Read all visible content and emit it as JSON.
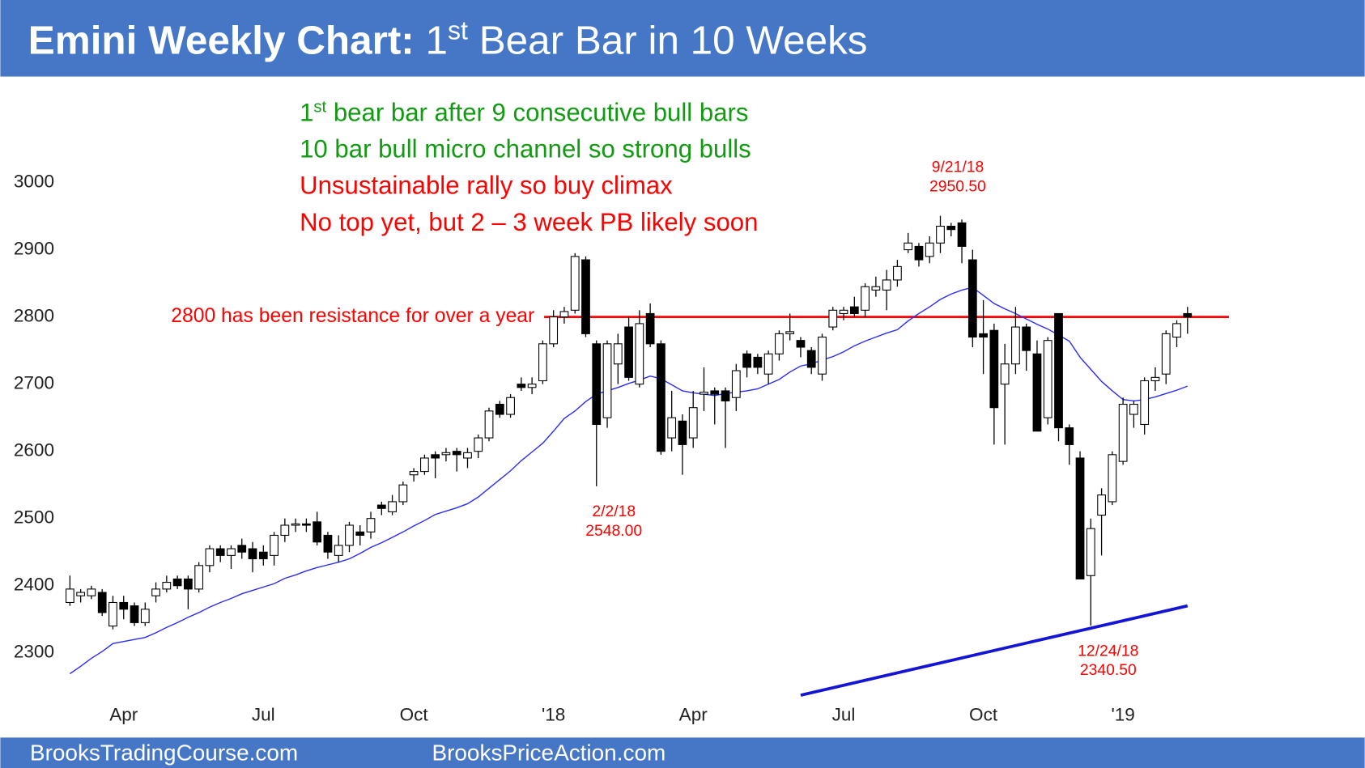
{
  "header": {
    "title_parts": [
      {
        "text": "Emini Weekly Chart:",
        "bold": true
      },
      {
        "text": " 1"
      },
      {
        "text": "st",
        "sup": true
      },
      {
        "text": " Bear Bar in 10 Weeks"
      }
    ]
  },
  "footer": [
    "BrooksTradingCourse.com",
    "BrooksPriceAction.com"
  ],
  "chart_data": {
    "type": "candlestick",
    "categories": [
      null,
      null,
      null,
      null,
      null,
      "Apr",
      null,
      null,
      null,
      null,
      null,
      null,
      null,
      null,
      null,
      null,
      null,
      null,
      "Jul",
      null,
      null,
      null,
      null,
      null,
      null,
      null,
      null,
      null,
      null,
      null,
      null,
      null,
      "Oct",
      null,
      null,
      null,
      null,
      null,
      null,
      null,
      null,
      null,
      null,
      null,
      null,
      "'18",
      null,
      null,
      null,
      null,
      null,
      null,
      null,
      null,
      null,
      null,
      null,
      null,
      "Apr",
      null,
      null,
      null,
      null,
      null,
      null,
      null,
      null,
      null,
      null,
      null,
      null,
      null,
      "Jul",
      null,
      null,
      null,
      null,
      null,
      null,
      null,
      null,
      null,
      null,
      null,
      null,
      "Oct",
      null,
      null,
      null,
      null,
      null,
      null,
      null,
      null,
      null,
      null,
      null,
      null,
      "'19",
      null,
      null,
      null,
      null,
      null,
      null
    ],
    "open": [
      2375,
      2385,
      2385,
      2390,
      2340,
      2375,
      2370,
      2345,
      2385,
      2395,
      2410,
      2410,
      2395,
      2430,
      2455,
      2445,
      2460,
      2455,
      2450,
      2445,
      2475,
      2490,
      2492,
      2495,
      2475,
      2445,
      2460,
      2480,
      2480,
      2520,
      2510,
      2525,
      2565,
      2570,
      2595,
      2595,
      2600,
      2590,
      2600,
      2620,
      2670,
      2655,
      2700,
      2695,
      2705,
      2760,
      2800,
      2810,
      2885,
      2760,
      2650,
      2730,
      2785,
      2700,
      2805,
      2760,
      2620,
      2645,
      2620,
      2685,
      2690,
      2690,
      2680,
      2745,
      2740,
      2715,
      2745,
      2775,
      2765,
      2750,
      2715,
      2785,
      2805,
      2815,
      2810,
      2840,
      2840,
      2855,
      2900,
      2905,
      2890,
      2910,
      2935,
      2940,
      2885,
      2775,
      2780,
      2700,
      2730,
      2785,
      2745,
      2650,
      2805,
      2635,
      2590,
      2415,
      2505,
      2525,
      2585,
      2655,
      2640,
      2705,
      2715,
      2770,
      2805
    ],
    "high": [
      2415,
      2395,
      2400,
      2395,
      2385,
      2385,
      2375,
      2375,
      2405,
      2415,
      2415,
      2415,
      2435,
      2460,
      2460,
      2460,
      2470,
      2465,
      2460,
      2480,
      2500,
      2500,
      2500,
      2510,
      2480,
      2475,
      2495,
      2490,
      2510,
      2525,
      2535,
      2555,
      2575,
      2595,
      2600,
      2605,
      2605,
      2605,
      2625,
      2665,
      2675,
      2685,
      2710,
      2710,
      2765,
      2810,
      2815,
      2895,
      2890,
      2765,
      2765,
      2775,
      2800,
      2810,
      2820,
      2765,
      2690,
      2655,
      2690,
      2725,
      2695,
      2695,
      2730,
      2750,
      2745,
      2750,
      2780,
      2805,
      2770,
      2755,
      2775,
      2815,
      2815,
      2830,
      2850,
      2860,
      2870,
      2885,
      2925,
      2910,
      2920,
      2950.5,
      2940,
      2945,
      2900,
      2825,
      2790,
      2760,
      2815,
      2790,
      2765,
      2770,
      2805,
      2640,
      2600,
      2500,
      2545,
      2600,
      2680,
      2675,
      2710,
      2725,
      2780,
      2795,
      2815
    ],
    "low": [
      2370,
      2375,
      2380,
      2355,
      2335,
      2350,
      2340,
      2340,
      2375,
      2390,
      2395,
      2365,
      2390,
      2420,
      2435,
      2425,
      2440,
      2420,
      2430,
      2430,
      2465,
      2480,
      2480,
      2460,
      2440,
      2435,
      2450,
      2460,
      2470,
      2505,
      2505,
      2520,
      2555,
      2565,
      2560,
      2585,
      2570,
      2575,
      2590,
      2615,
      2650,
      2650,
      2690,
      2685,
      2700,
      2755,
      2790,
      2805,
      2770,
      2548,
      2635,
      2700,
      2705,
      2695,
      2755,
      2595,
      2600,
      2565,
      2605,
      2660,
      2640,
      2605,
      2660,
      2710,
      2715,
      2700,
      2735,
      2765,
      2740,
      2715,
      2705,
      2780,
      2795,
      2800,
      2800,
      2830,
      2810,
      2845,
      2895,
      2875,
      2880,
      2895,
      2920,
      2880,
      2755,
      2715,
      2610,
      2610,
      2715,
      2720,
      2630,
      2640,
      2615,
      2580,
      2410,
      2340.5,
      2445,
      2520,
      2580,
      2635,
      2625,
      2690,
      2700,
      2755,
      2775
    ],
    "close": [
      2395,
      2390,
      2395,
      2360,
      2375,
      2365,
      2345,
      2365,
      2395,
      2405,
      2400,
      2395,
      2430,
      2455,
      2445,
      2455,
      2450,
      2440,
      2440,
      2475,
      2490,
      2492,
      2490,
      2465,
      2450,
      2460,
      2490,
      2475,
      2500,
      2515,
      2525,
      2550,
      2570,
      2590,
      2590,
      2598,
      2595,
      2598,
      2620,
      2660,
      2655,
      2680,
      2695,
      2700,
      2760,
      2800,
      2808,
      2890,
      2775,
      2640,
      2760,
      2760,
      2710,
      2790,
      2760,
      2600,
      2650,
      2610,
      2665,
      2688,
      2685,
      2675,
      2720,
      2725,
      2725,
      2745,
      2775,
      2778,
      2755,
      2725,
      2770,
      2810,
      2810,
      2805,
      2845,
      2845,
      2855,
      2875,
      2910,
      2885,
      2910,
      2935,
      2930,
      2905,
      2770,
      2770,
      2665,
      2730,
      2785,
      2750,
      2630,
      2765,
      2635,
      2610,
      2410,
      2485,
      2535,
      2595,
      2670,
      2670,
      2705,
      2710,
      2775,
      2790,
      2800
    ],
    "up_color": "#ffffff",
    "down_color": "#000000",
    "moving_average": {
      "color": "#2b2bff",
      "values": [
        2269,
        2280,
        2292,
        2302,
        2314,
        2317,
        2320,
        2323,
        2330,
        2338,
        2345,
        2353,
        2360,
        2368,
        2375,
        2381,
        2388,
        2393,
        2398,
        2403,
        2411,
        2416,
        2422,
        2427,
        2431,
        2435,
        2440,
        2448,
        2457,
        2464,
        2472,
        2480,
        2489,
        2497,
        2506,
        2511,
        2516,
        2522,
        2532,
        2545,
        2558,
        2571,
        2586,
        2599,
        2612,
        2630,
        2649,
        2660,
        2674,
        2685,
        2690,
        2695,
        2701,
        2706,
        2712,
        2708,
        2699,
        2690,
        2687,
        2685,
        2683,
        2686,
        2688,
        2690,
        2693,
        2700,
        2707,
        2718,
        2727,
        2730,
        2736,
        2741,
        2748,
        2757,
        2764,
        2770,
        2776,
        2781,
        2794,
        2805,
        2815,
        2826,
        2834,
        2840,
        2844,
        2832,
        2820,
        2812,
        2805,
        2797,
        2789,
        2782,
        2773,
        2764,
        2740,
        2722,
        2704,
        2690,
        2677,
        2675,
        2677,
        2681,
        2686,
        2691,
        2697
      ]
    },
    "ylim": [
      2240,
      3150
    ],
    "yticks": [
      2300,
      2400,
      2500,
      2600,
      2700,
      2800,
      2900,
      3000
    ],
    "hline": {
      "value": 2800,
      "label": "2800 has been resistance for over a year",
      "color": "#ff0000"
    },
    "trend_line": {
      "color": "#1414d6",
      "start": {
        "category": 68,
        "value": 2237
      },
      "end": {
        "category": 104,
        "value": 2370
      }
    },
    "annotations": [
      {
        "color": "#129a12",
        "parts": [
          {
            "text": "1"
          },
          {
            "text": "st",
            "sup": true
          },
          {
            "text": " bear bar after 9 consecutive bull bars"
          }
        ]
      },
      {
        "color": "#129a12",
        "parts": [
          {
            "text": "10 bar bull micro channel so strong bulls"
          }
        ]
      },
      {
        "color": "#ff0000",
        "parts": [
          {
            "text": "Unsustainable rally so buy climax"
          }
        ]
      },
      {
        "color": "#ff0000",
        "parts": [
          {
            "text": "No top yet, but 2 – 3 week PB likely soon"
          }
        ]
      }
    ],
    "point_labels": [
      {
        "date": "9/21/18",
        "value": 2950.5,
        "value_label": "2950.50",
        "side": "above"
      },
      {
        "date": "2/2/18",
        "value": 2548,
        "value_label": "2548.00",
        "side": "below"
      },
      {
        "date": "12/24/18",
        "value": 2340.5,
        "value_label": "2340.50",
        "side": "below"
      }
    ],
    "label_color": "#ff0000"
  }
}
